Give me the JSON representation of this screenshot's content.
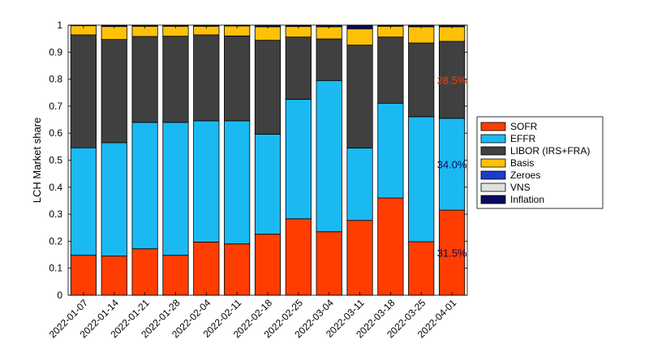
{
  "chart_data": {
    "type": "bar",
    "stacked": true,
    "ylabel": "LCH Market share",
    "ylim": [
      0,
      1
    ],
    "yticks": [
      0,
      0.1,
      0.2,
      0.3,
      0.4,
      0.5,
      0.6,
      0.7,
      0.8,
      0.9,
      1
    ],
    "ytick_labels": [
      "0",
      "0.1",
      "0.2",
      "0.3",
      "0.4",
      "0.5",
      "0.6",
      "0.7",
      "0.8",
      "0.9",
      "1"
    ],
    "grid": false,
    "legend_position": "right",
    "categories": [
      "2022-01-07",
      "2022-01-14",
      "2022-01-21",
      "2022-01-28",
      "2022-02-04",
      "2022-02-11",
      "2022-02-18",
      "2022-02-25",
      "2022-03-04",
      "2022-03-11",
      "2022-03-18",
      "2022-03-25",
      "2022-04-01"
    ],
    "series": [
      {
        "name": "SOFR",
        "color": "#ff3d00",
        "values": [
          0.148,
          0.145,
          0.172,
          0.148,
          0.197,
          0.19,
          0.226,
          0.283,
          0.235,
          0.277,
          0.36,
          0.198,
          0.315
        ]
      },
      {
        "name": "EFFR",
        "color": "#1bb9f2",
        "values": [
          0.398,
          0.42,
          0.468,
          0.492,
          0.449,
          0.456,
          0.37,
          0.442,
          0.56,
          0.268,
          0.351,
          0.463,
          0.34
        ]
      },
      {
        "name": "LIBOR (IRS+FRA)",
        "color": "#404040",
        "values": [
          0.418,
          0.382,
          0.318,
          0.319,
          0.318,
          0.314,
          0.348,
          0.231,
          0.154,
          0.381,
          0.245,
          0.273,
          0.285
        ]
      },
      {
        "name": "Basis",
        "color": "#ffc107",
        "values": [
          0.034,
          0.048,
          0.038,
          0.037,
          0.032,
          0.037,
          0.05,
          0.039,
          0.045,
          0.06,
          0.04,
          0.06,
          0.054
        ]
      },
      {
        "name": "Zeroes",
        "color": "#1a3ec9",
        "values": [
          0,
          0,
          0,
          0,
          0,
          0,
          0,
          0,
          0,
          0,
          0,
          0,
          0
        ]
      },
      {
        "name": "VNS",
        "color": "#e0e0e0",
        "values": [
          0,
          0,
          0,
          0,
          0,
          0,
          0,
          0,
          0,
          0,
          0,
          0,
          0
        ]
      },
      {
        "name": "Inflation",
        "color": "#0b0b5e",
        "values": [
          0.002,
          0.005,
          0.004,
          0.004,
          0.004,
          0.003,
          0.006,
          0.005,
          0.006,
          0.014,
          0.004,
          0.006,
          0.006
        ]
      }
    ],
    "annotations": [
      {
        "text": "28.5%",
        "category": "2022-04-01",
        "y": 0.797,
        "color": "#ff3d00"
      },
      {
        "text": "34.0%",
        "category": "2022-04-01",
        "y": 0.485,
        "color": "#0b0b5e"
      },
      {
        "text": "31.5%",
        "category": "2022-04-01",
        "y": 0.158,
        "color": "#0b0b5e"
      }
    ]
  }
}
